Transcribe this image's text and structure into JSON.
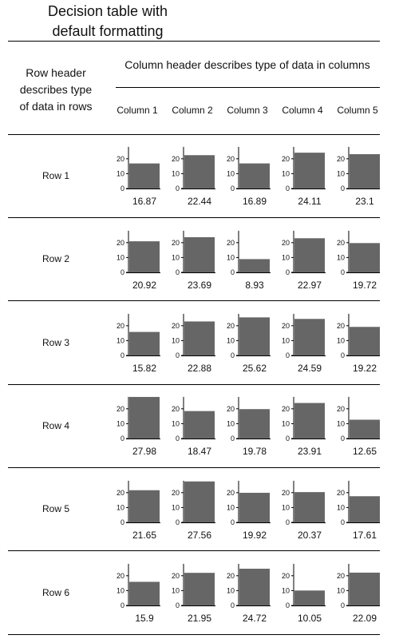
{
  "chart_data": {
    "type": "bar",
    "title": "Decision table with default formatting",
    "title_lines": [
      "Decision table with",
      "default formatting"
    ],
    "row_header_title": "Row header describes type of data in rows",
    "row_header_lines": [
      "Row header",
      "describes type",
      "of data in rows"
    ],
    "column_header_title": "Column header describes type of data in columns",
    "columns": [
      "Column 1",
      "Column 2",
      "Column 3",
      "Column 4",
      "Column 5"
    ],
    "rows": [
      "Row 1",
      "Row 2",
      "Row 3",
      "Row 4",
      "Row 5",
      "Row 6"
    ],
    "ylim": [
      0,
      28
    ],
    "yticks": [
      0,
      10,
      20
    ],
    "bar_color": "#666666",
    "values": [
      [
        "16.87",
        "22.44",
        "16.89",
        "24.11",
        "23.1"
      ],
      [
        "20.92",
        "23.69",
        "8.93",
        "22.97",
        "19.72"
      ],
      [
        "15.82",
        "22.88",
        "25.62",
        "24.59",
        "19.22"
      ],
      [
        "27.98",
        "18.47",
        "19.78",
        "23.91",
        "12.65"
      ],
      [
        "21.65",
        "27.56",
        "19.92",
        "20.37",
        "17.61"
      ],
      [
        "15.9",
        "21.95",
        "24.72",
        "10.05",
        "22.09"
      ]
    ]
  }
}
